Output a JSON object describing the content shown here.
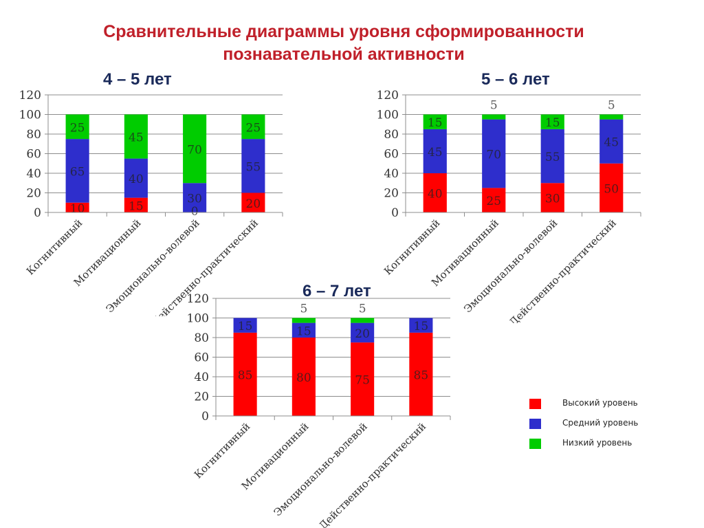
{
  "title_line1": "Сравнительные  диаграммы  уровня сформированности",
  "title_line2": "познавательной активности",
  "colors": {
    "high": "#ff0000",
    "medium": "#2e2ecc",
    "low": "#00cc00"
  },
  "legend": [
    {
      "key": "high",
      "label": "Высокий уровень",
      "color": "#ff0000"
    },
    {
      "key": "medium",
      "label": "Средний уровень",
      "color": "#2e2ecc"
    },
    {
      "key": "low",
      "label": "Низкий уровень",
      "color": "#00cc00"
    }
  ],
  "chart_data": [
    {
      "type": "bar",
      "stacked": true,
      "title": "4 – 5 лет",
      "categories": [
        "Когнитивный",
        "Мотивационный",
        "Эмоционально-волевой",
        "Действенно-практический"
      ],
      "ylim": [
        0,
        120
      ],
      "yticks": [
        0,
        20,
        40,
        60,
        80,
        100,
        120
      ],
      "grid": true,
      "series": [
        {
          "name": "Высокий уровень",
          "values": [
            10,
            15,
            0,
            20
          ]
        },
        {
          "name": "Средний уровень",
          "values": [
            65,
            40,
            30,
            55
          ]
        },
        {
          "name": "Низкий уровень",
          "values": [
            25,
            45,
            70,
            25
          ]
        }
      ]
    },
    {
      "type": "bar",
      "stacked": true,
      "title": "5 – 6 лет",
      "categories": [
        "Когнитивный",
        "Мотивационный",
        "Эмоционально-волевой",
        "Действенно-практический"
      ],
      "ylim": [
        0,
        120
      ],
      "yticks": [
        0,
        20,
        40,
        60,
        80,
        100,
        120
      ],
      "grid": true,
      "series": [
        {
          "name": "Высокий уровень",
          "values": [
            40,
            25,
            30,
            50
          ]
        },
        {
          "name": "Средний уровень",
          "values": [
            45,
            70,
            55,
            45
          ]
        },
        {
          "name": "Низкий уровень",
          "values": [
            15,
            5,
            15,
            5
          ]
        }
      ]
    },
    {
      "type": "bar",
      "stacked": true,
      "title": "6 – 7 лет",
      "categories": [
        "Когнитивный",
        "Мотивационный",
        "Эмоционально-волевой",
        "Действенно-практический"
      ],
      "ylim": [
        0,
        120
      ],
      "yticks": [
        0,
        20,
        40,
        60,
        80,
        100,
        120
      ],
      "grid": true,
      "series": [
        {
          "name": "Высокий уровень",
          "values": [
            85,
            80,
            75,
            85
          ]
        },
        {
          "name": "Средний уровень",
          "values": [
            15,
            15,
            20,
            15
          ]
        },
        {
          "name": "Низкий уровень",
          "values": [
            0,
            5,
            5,
            0
          ]
        }
      ]
    }
  ]
}
